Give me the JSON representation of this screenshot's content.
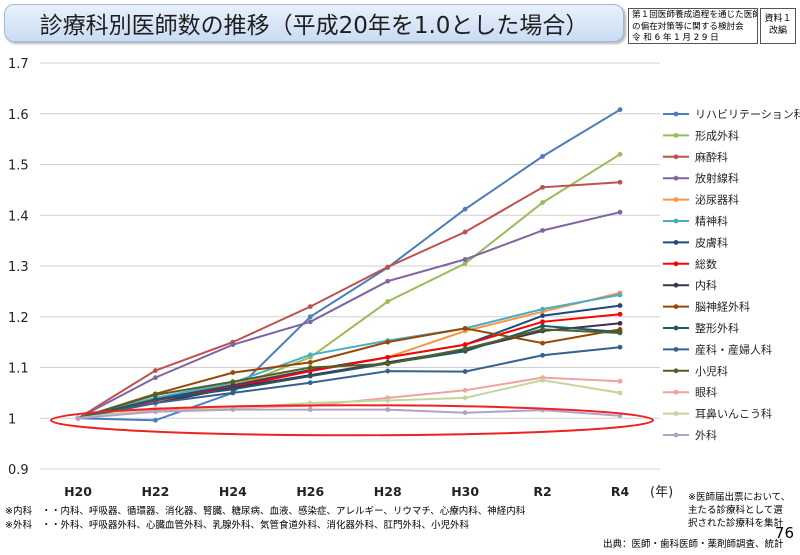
{
  "header": {
    "title": "診療科別医師数の推移（平成20年を1.0とした場合）",
    "meeting_lines": [
      "第１回医師養成過程を通じた医師",
      "の偏在対策等に関する検討会",
      "令 和 6 年 1 月 2 9 日"
    ],
    "doc_lines": [
      "資料１",
      "改編"
    ]
  },
  "chart_data": {
    "type": "line",
    "categories": [
      "H20",
      "H22",
      "H24",
      "H26",
      "H28",
      "H30",
      "R2",
      "R4"
    ],
    "x_unit": "(年)",
    "ylim": [
      0.9,
      1.7
    ],
    "yticks": [
      "0.9",
      "1",
      "1.1",
      "1.2",
      "1.3",
      "1.4",
      "1.5",
      "1.6",
      "1.7"
    ],
    "grid": "horizontal",
    "legend_position": "right",
    "series": [
      {
        "name": "リハビリテーション科",
        "color": "#4a7dbb",
        "values": [
          1.0,
          0.996,
          1.05,
          1.2,
          1.297,
          1.412,
          1.516,
          1.608
        ]
      },
      {
        "name": "形成外科",
        "color": "#9bbb59",
        "values": [
          1.0,
          1.04,
          1.06,
          1.12,
          1.23,
          1.305,
          1.425,
          1.52
        ]
      },
      {
        "name": "麻酔科",
        "color": "#c0504d",
        "values": [
          1.0,
          1.094,
          1.15,
          1.22,
          1.298,
          1.367,
          1.455,
          1.465
        ]
      },
      {
        "name": "放射線科",
        "color": "#8064a2",
        "values": [
          1.0,
          1.08,
          1.145,
          1.19,
          1.27,
          1.313,
          1.37,
          1.406
        ]
      },
      {
        "name": "泌尿器科",
        "color": "#f79646",
        "values": [
          1.0,
          1.04,
          1.068,
          1.095,
          1.12,
          1.172,
          1.21,
          1.247
        ]
      },
      {
        "name": "精神科",
        "color": "#4bacc6",
        "values": [
          1.0,
          1.04,
          1.07,
          1.125,
          1.153,
          1.177,
          1.215,
          1.243
        ]
      },
      {
        "name": "皮膚科",
        "color": "#1f497d",
        "values": [
          1.0,
          1.037,
          1.065,
          1.095,
          1.12,
          1.145,
          1.202,
          1.222
        ]
      },
      {
        "name": "総数",
        "color": "#ff0000",
        "values": [
          1.0,
          1.035,
          1.061,
          1.093,
          1.12,
          1.145,
          1.19,
          1.205
        ]
      },
      {
        "name": "内科",
        "color": "#403151",
        "values": [
          1.0,
          1.03,
          1.06,
          1.085,
          1.11,
          1.135,
          1.172,
          1.187
        ]
      },
      {
        "name": "脳神経外科",
        "color": "#984807",
        "values": [
          1.0,
          1.048,
          1.09,
          1.11,
          1.15,
          1.177,
          1.148,
          1.175
        ]
      },
      {
        "name": "整形外科",
        "color": "#215967",
        "values": [
          1.0,
          1.037,
          1.057,
          1.083,
          1.108,
          1.132,
          1.182,
          1.17
        ]
      },
      {
        "name": "産科・産婦人科",
        "color": "#376092",
        "values": [
          1.0,
          1.03,
          1.05,
          1.07,
          1.093,
          1.092,
          1.124,
          1.14
        ]
      },
      {
        "name": "小児科",
        "color": "#4f6228",
        "values": [
          1.0,
          1.046,
          1.072,
          1.1,
          1.107,
          1.137,
          1.175,
          1.168
        ]
      },
      {
        "name": "眼科",
        "color": "#f2a0a0",
        "values": [
          1.0,
          1.016,
          1.02,
          1.025,
          1.04,
          1.055,
          1.08,
          1.073
        ]
      },
      {
        "name": "耳鼻いんこう科",
        "color": "#c3d69b",
        "values": [
          1.0,
          1.02,
          1.02,
          1.03,
          1.035,
          1.04,
          1.075,
          1.05
        ]
      },
      {
        "name": "外科",
        "color": "#b3a2c7",
        "values": [
          1.0,
          1.013,
          1.017,
          1.017,
          1.017,
          1.011,
          1.016,
          1.005
        ]
      }
    ]
  },
  "notes": {
    "naika": "※内科　・・内科、呼吸器、循環器、消化器、腎臓、糖尿病、血液、感染症、アレルギー、リウマチ、心療内科、神経内科",
    "geka": "※外科　・・外科、呼吸器外科、心臓血管外科、乳腺外科、気管食道外科、消化器外科、肛門外科、小児外科",
    "license_lines": [
      "※医師届出票において、",
      "主たる診療科として選",
      "択された診療科を集計"
    ],
    "source": "出典：医師・歯科医師・薬剤師調査、統計"
  },
  "page_number": "76"
}
